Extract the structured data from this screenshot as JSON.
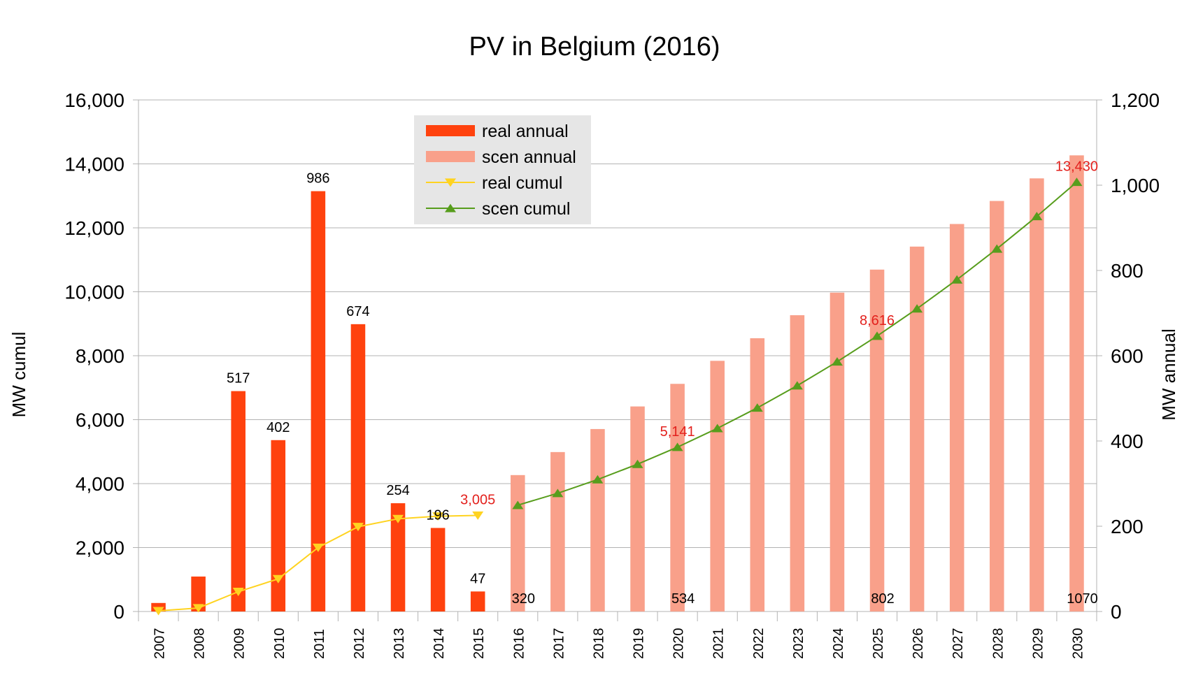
{
  "chart_data": {
    "type": "bar",
    "title": "PV in Belgium (2016)",
    "ylabel_left": "MW cumul",
    "ylabel_right": "MW annual",
    "ylim_left": [
      0,
      16000
    ],
    "ylim_right": [
      0,
      1200
    ],
    "left_ticks": [
      "0",
      "2,000",
      "4,000",
      "6,000",
      "8,000",
      "10,000",
      "12,000",
      "14,000",
      "16,000"
    ],
    "right_ticks": [
      "0",
      "200",
      "400",
      "600",
      "800",
      "1,000",
      "1,200"
    ],
    "grid": true,
    "legend_position": "top-left",
    "categories": [
      "2007",
      "2008",
      "2009",
      "2010",
      "2011",
      "2012",
      "2013",
      "2014",
      "2015",
      "2016",
      "2017",
      "2018",
      "2019",
      "2020",
      "2021",
      "2022",
      "2023",
      "2024",
      "2025",
      "2026",
      "2027",
      "2028",
      "2029",
      "2030"
    ],
    "series": [
      {
        "name": "real annual",
        "kind": "bar",
        "axis": "right",
        "color": "#ff420e",
        "values": [
          20,
          82,
          517,
          402,
          986,
          674,
          254,
          196,
          47,
          null,
          null,
          null,
          null,
          null,
          null,
          null,
          null,
          null,
          null,
          null,
          null,
          null,
          null,
          null
        ]
      },
      {
        "name": "scen annual",
        "kind": "bar",
        "axis": "right",
        "color": "#f9a08a",
        "values": [
          null,
          null,
          null,
          null,
          null,
          null,
          null,
          null,
          null,
          320,
          374,
          428,
          481,
          534,
          588,
          641,
          695,
          748,
          802,
          856,
          909,
          963,
          1016,
          1070
        ]
      },
      {
        "name": "real cumul",
        "kind": "line",
        "axis": "left",
        "color": "#ffd320",
        "marker": "triangle-down",
        "values": [
          20,
          110,
          620,
          1020,
          2000,
          2650,
          2900,
          2980,
          3005,
          null,
          null,
          null,
          null,
          null,
          null,
          null,
          null,
          null,
          null,
          null,
          null,
          null,
          null,
          null
        ]
      },
      {
        "name": "scen cumul",
        "kind": "line",
        "axis": "left",
        "color": "#579d1c",
        "marker": "triangle-up",
        "values": [
          null,
          null,
          null,
          null,
          null,
          null,
          null,
          null,
          null,
          3325,
          3699,
          4127,
          4608,
          5141,
          5729,
          6370,
          7065,
          7813,
          8616,
          9471,
          10380,
          11343,
          12359,
          13430
        ]
      }
    ],
    "bar_labels": [
      {
        "year": "2009",
        "text": "517"
      },
      {
        "year": "2010",
        "text": "402"
      },
      {
        "year": "2011",
        "text": "986"
      },
      {
        "year": "2012",
        "text": "674"
      },
      {
        "year": "2013",
        "text": "254"
      },
      {
        "year": "2014",
        "text": "196"
      },
      {
        "year": "2015",
        "text": "47"
      }
    ],
    "baseline_labels": [
      {
        "year": "2016",
        "text": "320"
      },
      {
        "year": "2020",
        "text": "534"
      },
      {
        "year": "2025",
        "text": "802"
      },
      {
        "year": "2030",
        "text": "1070"
      }
    ],
    "cumul_labels": [
      {
        "year": "2015",
        "value": 3005,
        "text": "3,005"
      },
      {
        "year": "2020",
        "value": 5141,
        "text": "5,141"
      },
      {
        "year": "2025",
        "value": 8616,
        "text": "8,616"
      },
      {
        "year": "2030",
        "value": 13430,
        "text": "13,430"
      }
    ],
    "colors": {
      "annotation_red": "#e3211d",
      "grid": "#b3b3b3",
      "legend_bg": "#e6e6e6",
      "text": "#000000"
    }
  }
}
